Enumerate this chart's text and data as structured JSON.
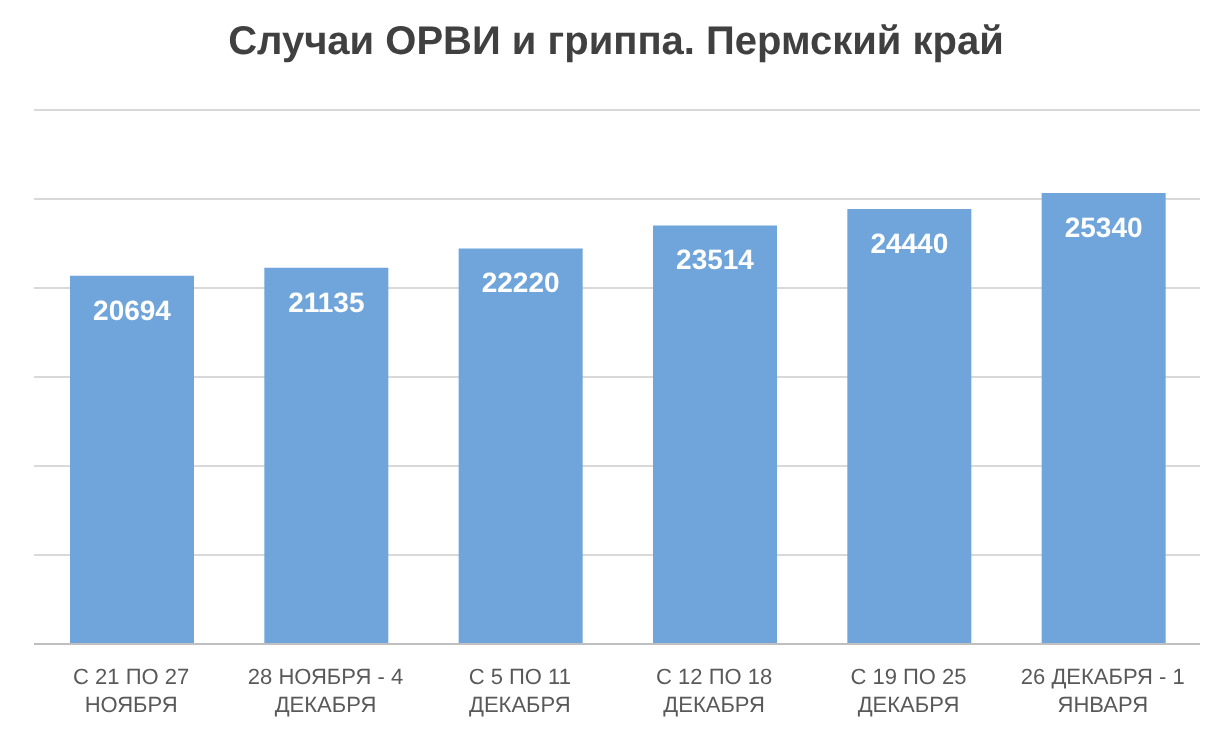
{
  "chart_data": {
    "type": "bar",
    "title": "Случаи ОРВИ и гриппа. Пермский край",
    "categories": [
      "С 21 ПО 27 НОЯБРЯ",
      "28 НОЯБРЯ - 4 ДЕКАБРЯ",
      "С 5 ПО 11 ДЕКАБРЯ",
      "С 12 ПО 18 ДЕКАБРЯ",
      "С 19 ПО 25 ДЕКАБРЯ",
      "26 ДЕКАБРЯ - 1 ЯНВАРЯ"
    ],
    "values": [
      20694,
      21135,
      22220,
      23514,
      24440,
      25340
    ],
    "color": "#6fa5da",
    "ylim": [
      0,
      30000
    ],
    "tick_labels": "x",
    "grid": "y",
    "data_labels": true,
    "legend": false
  }
}
